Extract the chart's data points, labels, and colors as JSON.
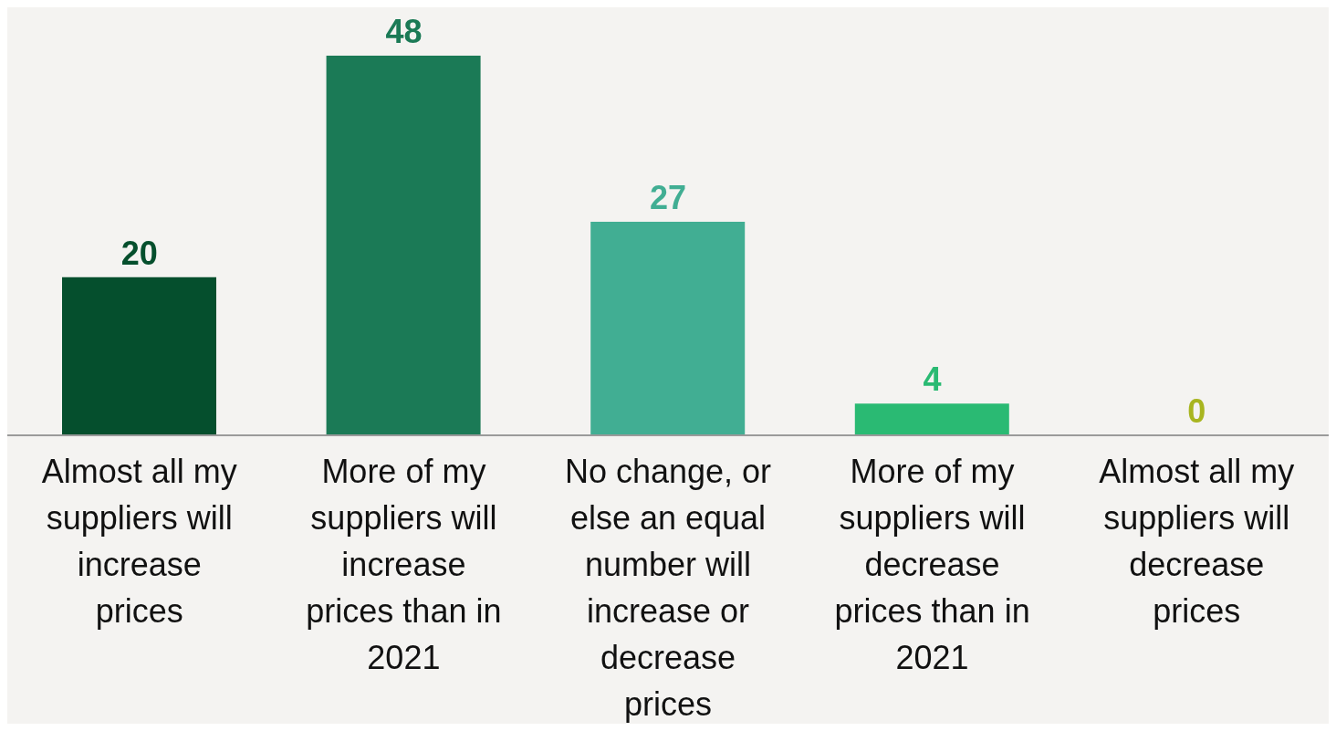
{
  "chart_data": {
    "type": "bar",
    "categories": [
      "Almost all my suppliers will increase prices",
      "More of my suppliers will increase prices than in 2021",
      "No change, or else an equal number will increase or decrease prices",
      "More of my suppliers will decrease prices than in 2021",
      "Almost all my suppliers will decrease prices"
    ],
    "values": [
      20,
      48,
      27,
      4,
      0
    ],
    "colors": [
      "#054f2d",
      "#1b7a56",
      "#41ae93",
      "#2aba73",
      "#a8b520"
    ],
    "data_labels": true,
    "grid": false,
    "legend": false
  }
}
